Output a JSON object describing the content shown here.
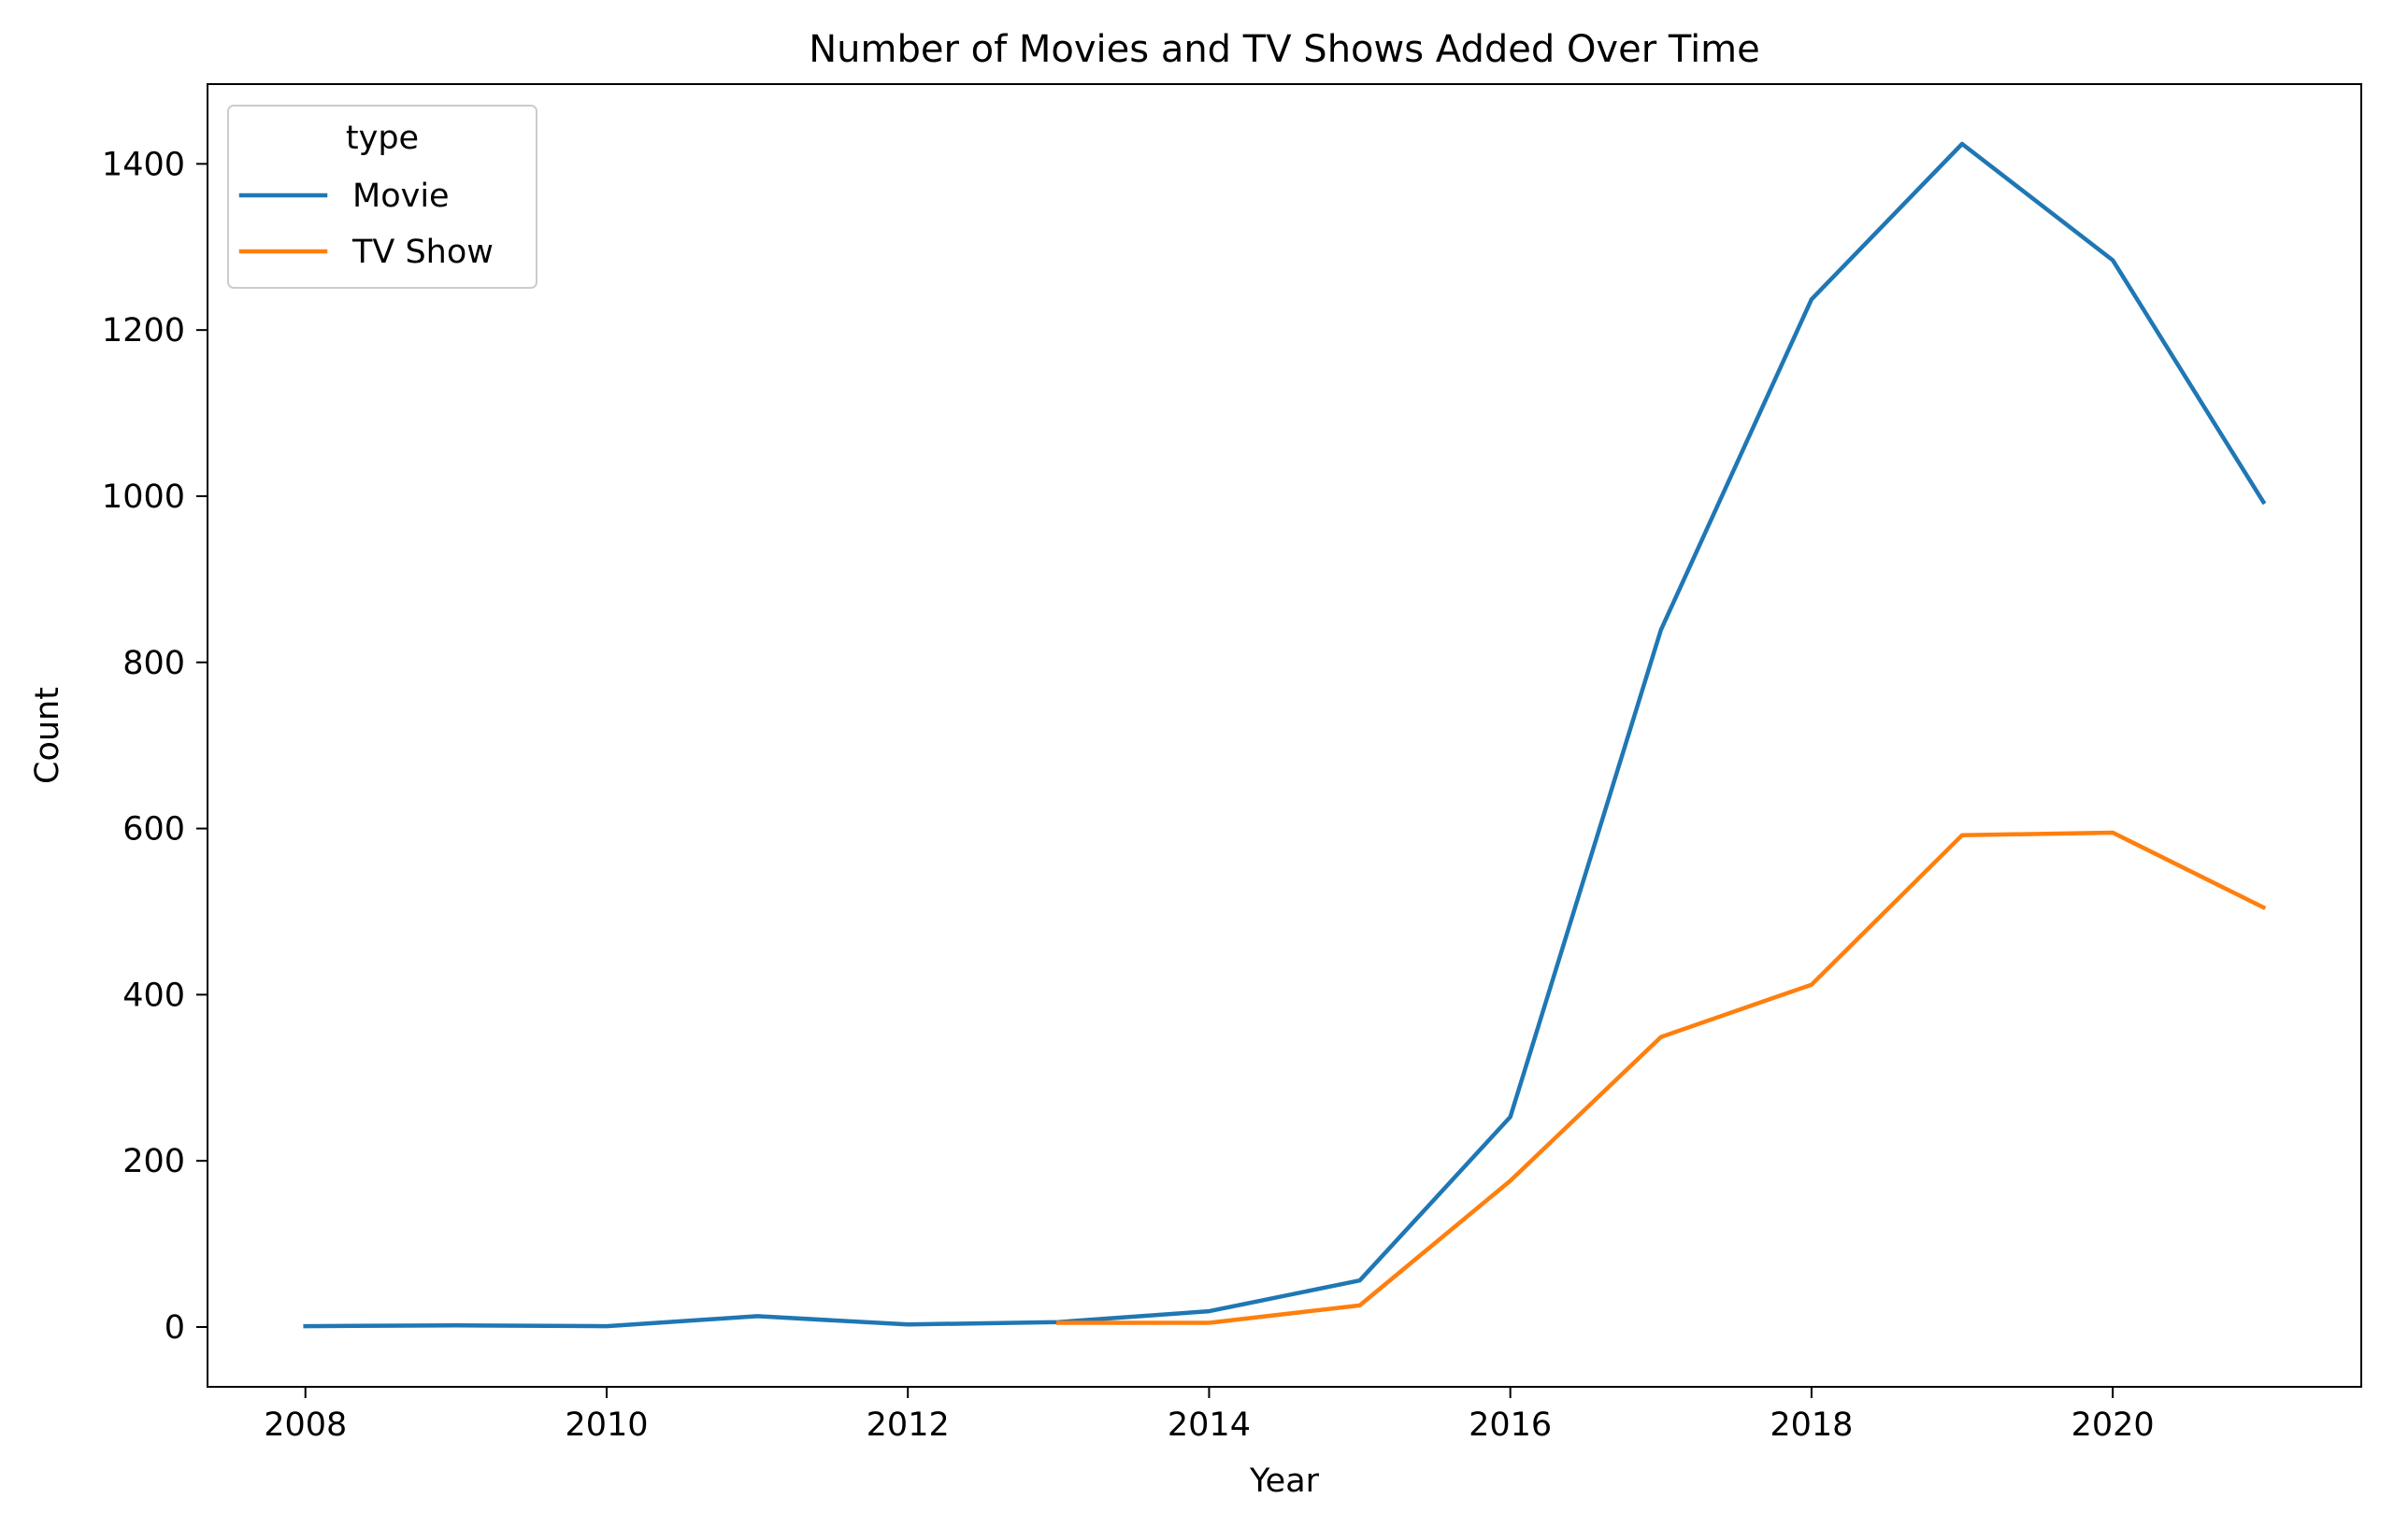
{
  "chart_data": {
    "type": "line",
    "title": "Number of Movies and TV Shows Added Over Time",
    "xlabel": "Year",
    "ylabel": "Count",
    "xlim": [
      2007.35,
      2021.65
    ],
    "ylim": [
      -72,
      1496
    ],
    "xticks": [
      2008,
      2010,
      2012,
      2014,
      2016,
      2018,
      2020
    ],
    "yticks": [
      0,
      200,
      400,
      600,
      800,
      1000,
      1200,
      1400
    ],
    "grid": false,
    "legend": {
      "title": "type",
      "placement": "upper-left"
    },
    "series": [
      {
        "name": "Movie",
        "color": "#1f77b4",
        "x": [
          2008,
          2009,
          2010,
          2011,
          2012,
          2013,
          2014,
          2015,
          2016,
          2017,
          2018,
          2019,
          2020,
          2021
        ],
        "y": [
          1,
          2,
          1,
          13,
          3,
          6,
          19,
          56,
          253,
          839,
          1237,
          1424,
          1284,
          993
        ]
      },
      {
        "name": "TV Show",
        "color": "#ff7f0e",
        "x": [
          2013,
          2014,
          2015,
          2016,
          2017,
          2018,
          2019,
          2020,
          2021
        ],
        "y": [
          5,
          5,
          26,
          176,
          349,
          412,
          592,
          595,
          505
        ]
      }
    ]
  }
}
